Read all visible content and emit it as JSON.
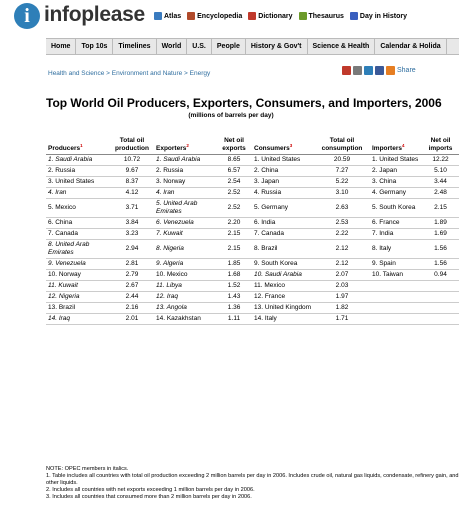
{
  "site": {
    "logo": "infoplease",
    "ref_links": [
      {
        "label": "Atlas",
        "color": "#3a7bbf"
      },
      {
        "label": "Encyclopedia",
        "color": "#b04a2a"
      },
      {
        "label": "Dictionary",
        "color": "#c0392b"
      },
      {
        "label": "Thesaurus",
        "color": "#6c9a2a"
      },
      {
        "label": "Day in History",
        "color": "#3a5fbf"
      }
    ],
    "nav": [
      "Home",
      "Top 10s",
      "Timelines",
      "World",
      "U.S.",
      "People",
      "History & Gov't",
      "Science & Health",
      "Calendar & Holida"
    ]
  },
  "breadcrumb": "Health and Science > Environment and Nature > Energy",
  "share_label": "Share",
  "title": "Top World Oil Producers, Exporters, Consumers, and Importers, 2006",
  "subtitle": "(millions of barrels per day)",
  "headers": [
    "Producers",
    "Total oil production",
    "Exporters",
    "Net oil exports",
    "Consumers",
    "Total oil consumption",
    "Importers",
    "Net oil imports"
  ],
  "rows": [
    [
      {
        "t": "1. Saudi Arabia",
        "i": true
      },
      "10.72",
      {
        "t": "1. Saudi Arabia",
        "i": true
      },
      "8.65",
      {
        "t": "1. United States",
        "i": false
      },
      "20.59",
      {
        "t": "1. United States",
        "i": false
      },
      "12.22"
    ],
    [
      {
        "t": "2. Russia",
        "i": false
      },
      "9.67",
      {
        "t": "2. Russia",
        "i": false
      },
      "6.57",
      {
        "t": "2. China",
        "i": false
      },
      "7.27",
      {
        "t": "2. Japan",
        "i": false
      },
      "5.10"
    ],
    [
      {
        "t": "3. United States",
        "i": false
      },
      "8.37",
      {
        "t": "3. Norway",
        "i": false
      },
      "2.54",
      {
        "t": "3. Japan",
        "i": false
      },
      "5.22",
      {
        "t": "3. China",
        "i": false
      },
      "3.44"
    ],
    [
      {
        "t": "4. Iran",
        "i": true
      },
      "4.12",
      {
        "t": "4. Iran",
        "i": true
      },
      "2.52",
      {
        "t": "4. Russia",
        "i": false
      },
      "3.10",
      {
        "t": "4. Germany",
        "i": false
      },
      "2.48"
    ],
    [
      {
        "t": "5. Mexico",
        "i": false
      },
      "3.71",
      {
        "t": "5. United Arab Emirates",
        "i": true
      },
      "2.52",
      {
        "t": "5. Germany",
        "i": false
      },
      "2.63",
      {
        "t": "5. South Korea",
        "i": false
      },
      "2.15"
    ],
    [
      {
        "t": "6. China",
        "i": false
      },
      "3.84",
      {
        "t": "6. Venezuela",
        "i": true
      },
      "2.20",
      {
        "t": "6. India",
        "i": false
      },
      "2.53",
      {
        "t": "6. France",
        "i": false
      },
      "1.89"
    ],
    [
      {
        "t": "7. Canada",
        "i": false
      },
      "3.23",
      {
        "t": "7. Kuwait",
        "i": true
      },
      "2.15",
      {
        "t": "7. Canada",
        "i": false
      },
      "2.22",
      {
        "t": "7. India",
        "i": false
      },
      "1.69"
    ],
    [
      {
        "t": "8. United Arab Emirates",
        "i": true
      },
      "2.94",
      {
        "t": "8. Nigeria",
        "i": true
      },
      "2.15",
      {
        "t": "8. Brazil",
        "i": false
      },
      "2.12",
      {
        "t": "8. Italy",
        "i": false
      },
      "1.56"
    ],
    [
      {
        "t": "9. Venezuela",
        "i": true
      },
      "2.81",
      {
        "t": "9. Algeria",
        "i": true
      },
      "1.85",
      {
        "t": "9. South Korea",
        "i": false
      },
      "2.12",
      {
        "t": "9. Spain",
        "i": false
      },
      "1.56"
    ],
    [
      {
        "t": "10. Norway",
        "i": false
      },
      "2.79",
      {
        "t": "10. Mexico",
        "i": false
      },
      "1.68",
      {
        "t": "10. Saudi Arabia",
        "i": true
      },
      "2.07",
      {
        "t": "10. Taiwan",
        "i": false
      },
      "0.94"
    ],
    [
      {
        "t": "11. Kuwait",
        "i": true
      },
      "2.67",
      {
        "t": "11. Libya",
        "i": true
      },
      "1.52",
      {
        "t": "11. Mexico",
        "i": false
      },
      "2.03",
      {
        "t": "",
        "i": false
      },
      ""
    ],
    [
      {
        "t": "12. Nigeria",
        "i": true
      },
      "2.44",
      {
        "t": "12. Iraq",
        "i": true
      },
      "1.43",
      {
        "t": "12. France",
        "i": false
      },
      "1.97",
      {
        "t": "",
        "i": false
      },
      ""
    ],
    [
      {
        "t": "13. Brazil",
        "i": false
      },
      "2.16",
      {
        "t": "13. Angola",
        "i": true
      },
      "1.36",
      {
        "t": "13. United Kingdom",
        "i": false
      },
      "1.82",
      {
        "t": "",
        "i": false
      },
      ""
    ],
    [
      {
        "t": "14. Iraq",
        "i": true
      },
      "2.01",
      {
        "t": "14. Kazakhstan",
        "i": false
      },
      "1.11",
      {
        "t": "14. Italy",
        "i": false
      },
      "1.71",
      {
        "t": "",
        "i": false
      },
      ""
    ]
  ],
  "notes": [
    "NOTE: OPEC members in italics.",
    "1. Table includes all countries with total oil production exceeding 2 million barrels per day in 2006. Includes crude oil, natural gas liquids, condensate, refinery gain, and other liquids.",
    "2. Includes all countries with net exports exceeding 1 million barrels per day in 2006.",
    "3. Includes all countries that consumed more than 2 million barrels per day in 2006."
  ]
}
